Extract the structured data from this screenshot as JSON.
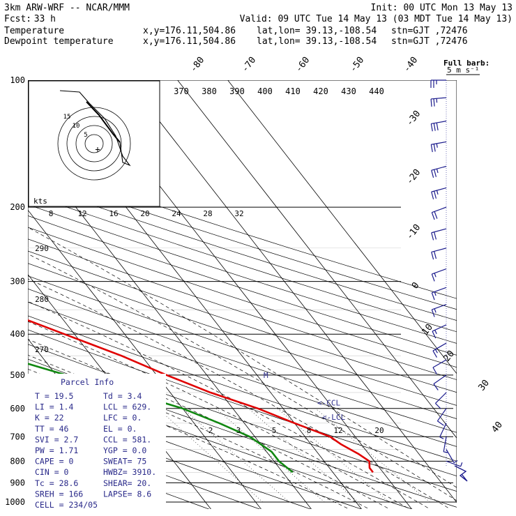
{
  "header": {
    "model": "3km ARW-WRF -- NCAR/MMM",
    "init": "Init: 00 UTC Mon 13 May 13",
    "fcst_label": "Fcst:",
    "fcst_value": "33 h",
    "valid": "Valid: 09 UTC Tue 14 May 13 (03 MDT Tue 14 May 13)"
  },
  "legend": [
    {
      "name": "Temperature",
      "color": "#e00000",
      "xy": "x,y=176.11,504.86",
      "latlon": "lat,lon= 39.13,-108.54",
      "stn": "stn=GJT ,72476"
    },
    {
      "name": "Dewpoint temperature",
      "color": "#118811",
      "xy": "x,y=176.11,504.86",
      "latlon": "lat,lon= 39.13,-108.54",
      "stn": "stn=GJT ,72476"
    }
  ],
  "wind_scale": {
    "title": "Full barb:",
    "value": "5 m s⁻¹"
  },
  "colors": {
    "temperature": "#e00000",
    "dewpoint": "#118811",
    "grid": "#000000",
    "wind": "#1a1a8c",
    "text_blue": "#2a2a8a"
  },
  "chart_data": {
    "type": "line",
    "diagram": "skew-T log-P sounding",
    "y_axis": {
      "quantity": "pressure",
      "scale": "log",
      "ticks": [
        100,
        200,
        300,
        400,
        500,
        600,
        700,
        800,
        900,
        1000
      ]
    },
    "isotherm_labels": [
      "-80",
      "-70",
      "-60",
      "-50",
      "-40",
      "-30",
      "-20",
      "-10",
      "0",
      "10",
      "20",
      "30",
      "40"
    ],
    "theta_labels": [
      "370",
      "380",
      "390",
      "400",
      "410",
      "420",
      "430",
      "440"
    ],
    "mixing_ratio_labels": [
      "2",
      "3",
      "5",
      "8",
      "12",
      "20"
    ],
    "hodograph": {
      "speed_unit": "kts",
      "ring_labels": [
        "5",
        "10",
        "15"
      ],
      "speed_ticks": [
        "8",
        "12",
        "16",
        "20",
        "24",
        "28",
        "32"
      ],
      "theta_ticks": [
        "290",
        "280",
        "270"
      ]
    },
    "series": [
      {
        "name": "Temperature",
        "color": "#e00000",
        "points": [
          [
            100,
            -52
          ],
          [
            115,
            -57
          ],
          [
            130,
            -62
          ],
          [
            150,
            -63
          ],
          [
            175,
            -60
          ],
          [
            200,
            -57
          ],
          [
            230,
            -54
          ],
          [
            260,
            -48
          ],
          [
            300,
            -40
          ],
          [
            350,
            -31
          ],
          [
            400,
            -22
          ],
          [
            450,
            -14
          ],
          [
            500,
            -8
          ],
          [
            550,
            -2
          ],
          [
            600,
            5
          ],
          [
            650,
            10
          ],
          [
            700,
            15
          ],
          [
            730,
            16
          ],
          [
            770,
            18
          ],
          [
            800,
            19
          ],
          [
            830,
            18
          ],
          [
            850,
            18
          ]
        ]
      },
      {
        "name": "Dewpoint temperature",
        "color": "#118811",
        "points": [
          [
            100,
            -82
          ],
          [
            125,
            -82
          ],
          [
            150,
            -82
          ],
          [
            175,
            -82
          ],
          [
            200,
            -76
          ],
          [
            230,
            -70
          ],
          [
            260,
            -64
          ],
          [
            300,
            -57
          ],
          [
            330,
            -52
          ],
          [
            365,
            -53
          ],
          [
            400,
            -49
          ],
          [
            450,
            -38
          ],
          [
            500,
            -28
          ],
          [
            550,
            -18
          ],
          [
            600,
            -10
          ],
          [
            650,
            -5
          ],
          [
            700,
            -1
          ],
          [
            760,
            1
          ],
          [
            800,
            1
          ],
          [
            850,
            2
          ]
        ]
      }
    ],
    "markers": [
      {
        "label": "<-CCL",
        "p": 581
      },
      {
        "label": "<-LCL",
        "p": 629
      },
      {
        "label": "M",
        "p": 500
      }
    ],
    "wind_barbs": [
      {
        "p": 100,
        "dir": 270,
        "spd": 27
      },
      {
        "p": 110,
        "dir": 265,
        "spd": 27
      },
      {
        "p": 125,
        "dir": 260,
        "spd": 32
      },
      {
        "p": 140,
        "dir": 260,
        "spd": 27
      },
      {
        "p": 160,
        "dir": 255,
        "spd": 25
      },
      {
        "p": 180,
        "dir": 255,
        "spd": 25
      },
      {
        "p": 200,
        "dir": 250,
        "spd": 22
      },
      {
        "p": 225,
        "dir": 255,
        "spd": 20
      },
      {
        "p": 250,
        "dir": 255,
        "spd": 20
      },
      {
        "p": 280,
        "dir": 250,
        "spd": 17
      },
      {
        "p": 310,
        "dir": 250,
        "spd": 17
      },
      {
        "p": 340,
        "dir": 250,
        "spd": 17
      },
      {
        "p": 380,
        "dir": 245,
        "spd": 15
      },
      {
        "p": 420,
        "dir": 240,
        "spd": 15
      },
      {
        "p": 460,
        "dir": 240,
        "spd": 12
      },
      {
        "p": 500,
        "dir": 235,
        "spd": 12
      },
      {
        "p": 550,
        "dir": 225,
        "spd": 10
      },
      {
        "p": 600,
        "dir": 215,
        "spd": 10
      },
      {
        "p": 650,
        "dir": 205,
        "spd": 7
      },
      {
        "p": 700,
        "dir": 190,
        "spd": 5
      },
      {
        "p": 750,
        "dir": 150,
        "spd": 5
      },
      {
        "p": 800,
        "dir": 110,
        "spd": 5
      }
    ]
  },
  "parcel_info": {
    "title": "Parcel Info",
    "rows": [
      [
        "T    =  19.5",
        "Td =   3.4"
      ],
      [
        "LI   =   1.4",
        "LCL =  629."
      ],
      [
        "K    =    22",
        "LFC =    0."
      ],
      [
        "TT   =    46",
        "EL  =    0."
      ],
      [
        "SVI  =   2.7",
        "CCL =  581."
      ],
      [
        "PW   =  1.71",
        "YGP =   0.0"
      ],
      [
        "CAPE =     0",
        "SWEAT=   75"
      ],
      [
        "CIN  =     0",
        "HWBZ= 3910."
      ],
      [
        "Tc   =  28.6",
        "SHEAR=  20."
      ],
      [
        "SREH =   166",
        "LAPSE=  8.6"
      ],
      [
        "CELL = 234/05",
        ""
      ]
    ]
  }
}
